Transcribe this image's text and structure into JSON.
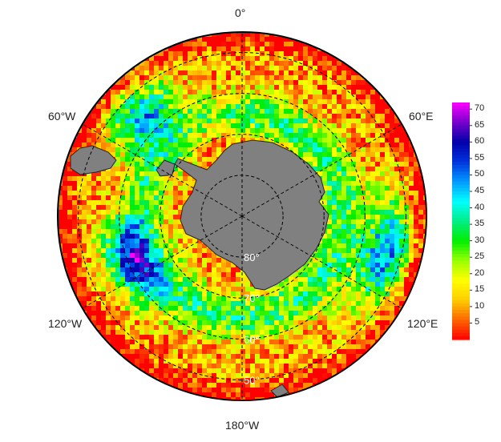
{
  "map": {
    "projection": "south-polar-stereographic",
    "longitude_labels": [
      {
        "id": "lon-0",
        "text": "0°"
      },
      {
        "id": "lon-60e",
        "text": "60°E"
      },
      {
        "id": "lon-120e",
        "text": "120°E"
      },
      {
        "id": "lon-180",
        "text": "180°W"
      },
      {
        "id": "lon-120w",
        "text": "120°W"
      },
      {
        "id": "lon-60w",
        "text": "60°W"
      }
    ],
    "latitude_labels": [
      "80°",
      "70°",
      "60°",
      "50°"
    ],
    "latitude_circles": [
      80,
      70,
      60,
      50
    ],
    "grid_style": "dashed",
    "land_color": "#808080",
    "background_color": "#ffffff"
  },
  "colorbar": {
    "ticks": [
      "70",
      "65",
      "60",
      "55",
      "50",
      "45",
      "40",
      "35",
      "30",
      "25",
      "20",
      "15",
      "10",
      "5"
    ],
    "min": 0,
    "max": 72,
    "colors": [
      "#ff0000",
      "#ff6600",
      "#ffcc00",
      "#ffff00",
      "#99ff00",
      "#00ee00",
      "#00ee88",
      "#00ffff",
      "#0099ff",
      "#0033dd",
      "#0000aa",
      "#7700cc",
      "#ff00ff"
    ]
  }
}
